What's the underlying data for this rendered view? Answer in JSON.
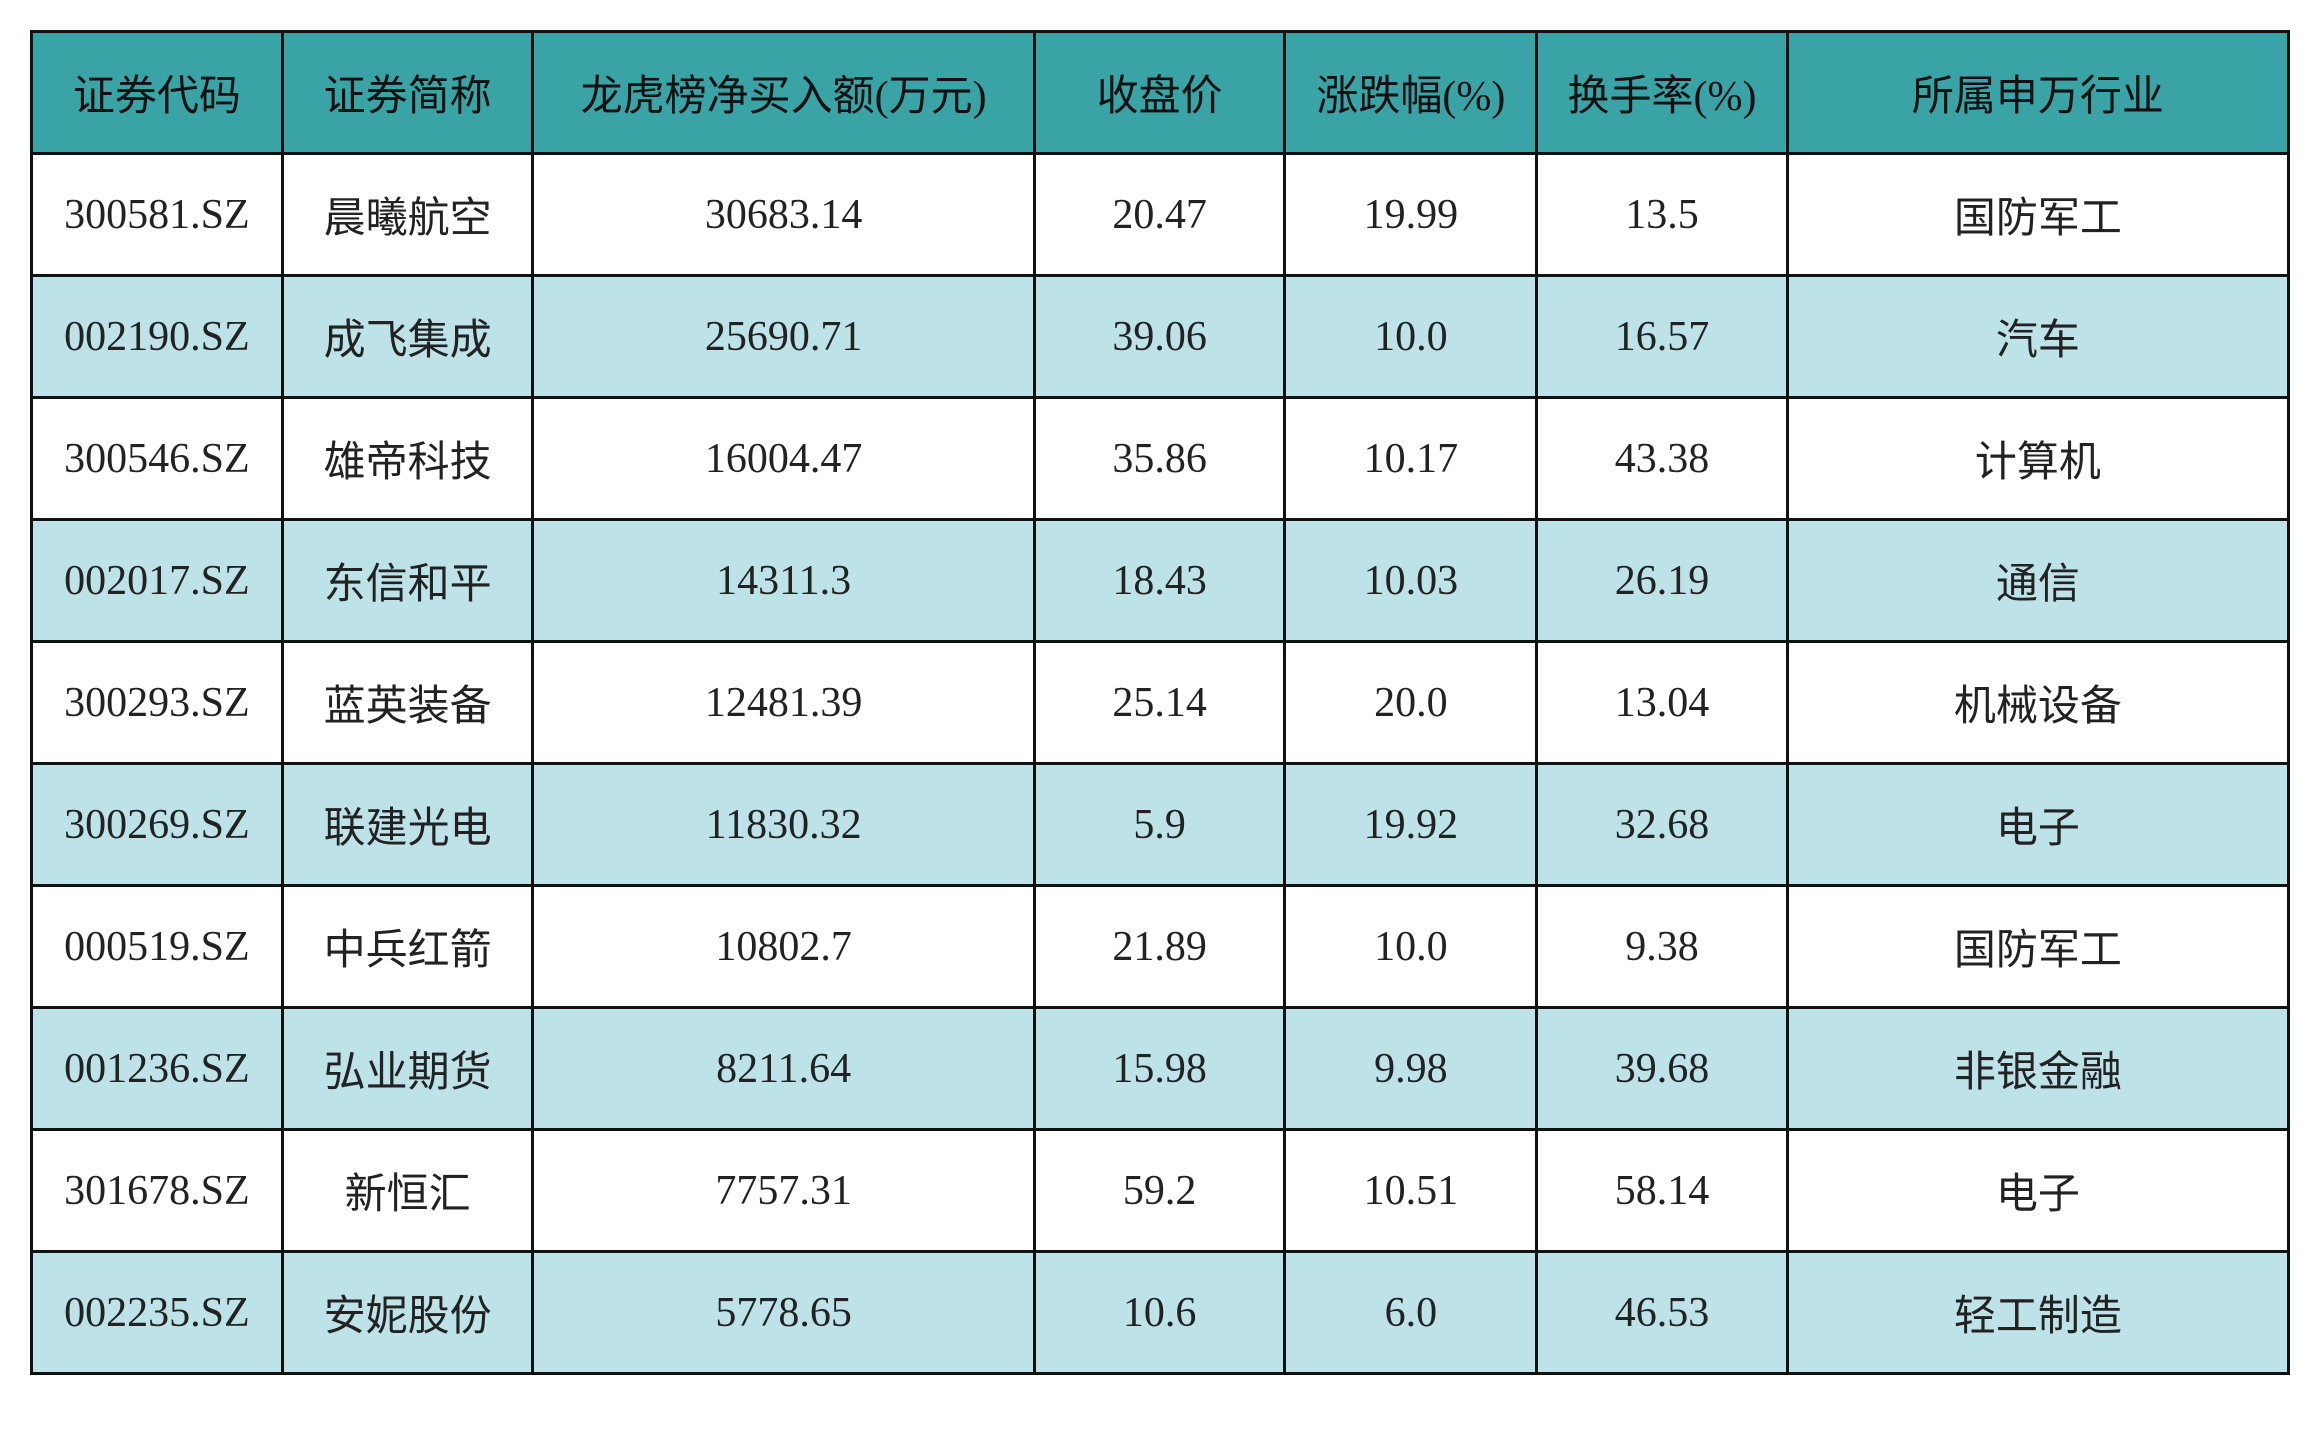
{
  "colors": {
    "header_bg": "#3aa3a5",
    "alt_row_bg": "#bde3e9"
  },
  "headers": [
    "证券代码",
    "证券简称",
    "龙虎榜净买入额(万元)",
    "收盘价",
    "涨跌幅(%)",
    "换手率(%)",
    "所属申万行业"
  ],
  "rows": [
    [
      "300581.SZ",
      "晨曦航空",
      "30683.14",
      "20.47",
      "19.99",
      "13.5",
      "国防军工"
    ],
    [
      "002190.SZ",
      "成飞集成",
      "25690.71",
      "39.06",
      "10.0",
      "16.57",
      "汽车"
    ],
    [
      "300546.SZ",
      "雄帝科技",
      "16004.47",
      "35.86",
      "10.17",
      "43.38",
      "计算机"
    ],
    [
      "002017.SZ",
      "东信和平",
      "14311.3",
      "18.43",
      "10.03",
      "26.19",
      "通信"
    ],
    [
      "300293.SZ",
      "蓝英装备",
      "12481.39",
      "25.14",
      "20.0",
      "13.04",
      "机械设备"
    ],
    [
      "300269.SZ",
      "联建光电",
      "11830.32",
      "5.9",
      "19.92",
      "32.68",
      "电子"
    ],
    [
      "000519.SZ",
      "中兵红箭",
      "10802.7",
      "21.89",
      "10.0",
      "9.38",
      "国防军工"
    ],
    [
      "001236.SZ",
      "弘业期货",
      "8211.64",
      "15.98",
      "9.98",
      "39.68",
      "非银金融"
    ],
    [
      "301678.SZ",
      "新恒汇",
      "7757.31",
      "59.2",
      "10.51",
      "58.14",
      "电子"
    ],
    [
      "002235.SZ",
      "安妮股份",
      "5778.65",
      "10.6",
      "6.0",
      "46.53",
      "轻工制造"
    ]
  ]
}
